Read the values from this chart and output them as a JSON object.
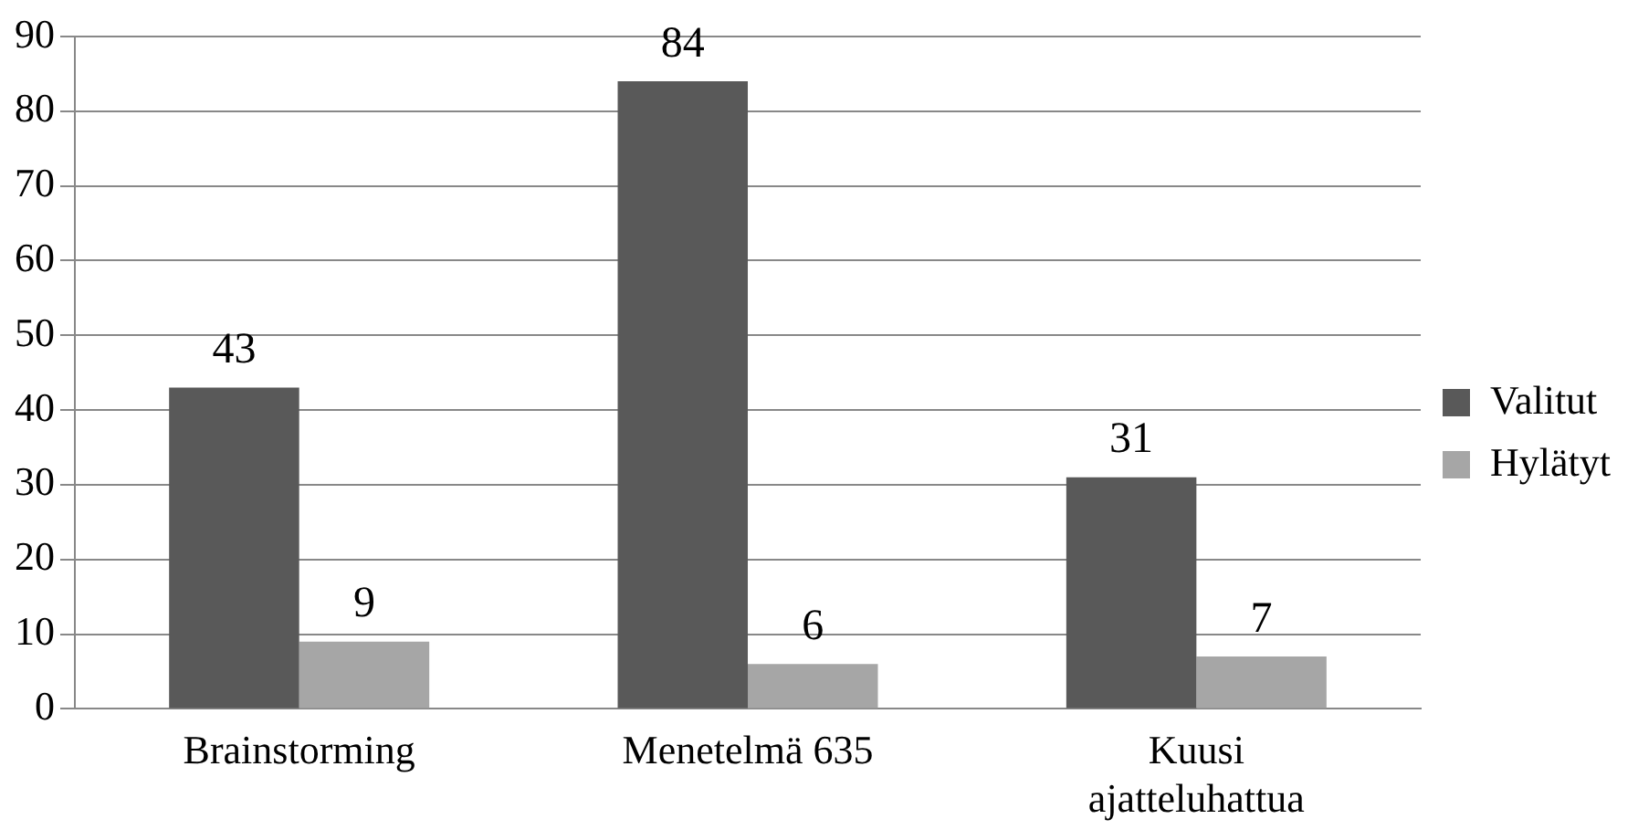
{
  "chart_data": {
    "type": "bar",
    "categories": [
      "Brainstorming",
      "Menetelmä 635",
      "Kuusi ajatteluhattua"
    ],
    "series": [
      {
        "name": "Valitut",
        "color": "#595959",
        "values": [
          43,
          84,
          31
        ]
      },
      {
        "name": "Hylätyt",
        "color": "#a6a6a6",
        "values": [
          9,
          6,
          7
        ]
      }
    ],
    "ylim": [
      0,
      90
    ],
    "yticks": [
      0,
      10,
      20,
      30,
      40,
      50,
      60,
      70,
      80,
      90
    ],
    "grid": "y",
    "legend": "right",
    "data_labels": true
  }
}
